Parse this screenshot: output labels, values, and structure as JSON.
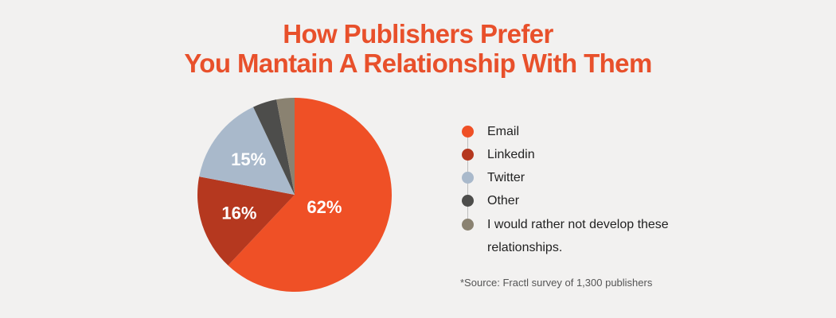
{
  "title": {
    "line1": "How Publishers Prefer",
    "line2": "You Mantain A Relationship With Them"
  },
  "chart_data": {
    "type": "pie",
    "title": "How Publishers Prefer You Mantain A Relationship With Them",
    "slices": [
      {
        "name": "Email",
        "value": 62,
        "label": "62%",
        "color": "#ef5026"
      },
      {
        "name": "Linkedin",
        "value": 16,
        "label": "16%",
        "color": "#b5381f"
      },
      {
        "name": "Twitter",
        "value": 15,
        "label": "15%",
        "color": "#a9b9cb"
      },
      {
        "name": "Other",
        "value": 4,
        "label": "",
        "color": "#4d4d4b"
      },
      {
        "name": "I would rather not develop these relationships.",
        "value": 3,
        "label": "",
        "color": "#8a8271"
      }
    ],
    "legend_position": "right"
  },
  "legend": {
    "items": [
      {
        "label": "Email",
        "color": "#ef5026"
      },
      {
        "label": "Linkedin",
        "color": "#b5381f"
      },
      {
        "label": "Twitter",
        "color": "#a9b9cb"
      },
      {
        "label": "Other",
        "color": "#4d4d4b"
      },
      {
        "label": "I would rather not develop these relationships.",
        "color": "#8a8271"
      }
    ]
  },
  "source": "*Source: Fractl survey of 1,300 publishers"
}
